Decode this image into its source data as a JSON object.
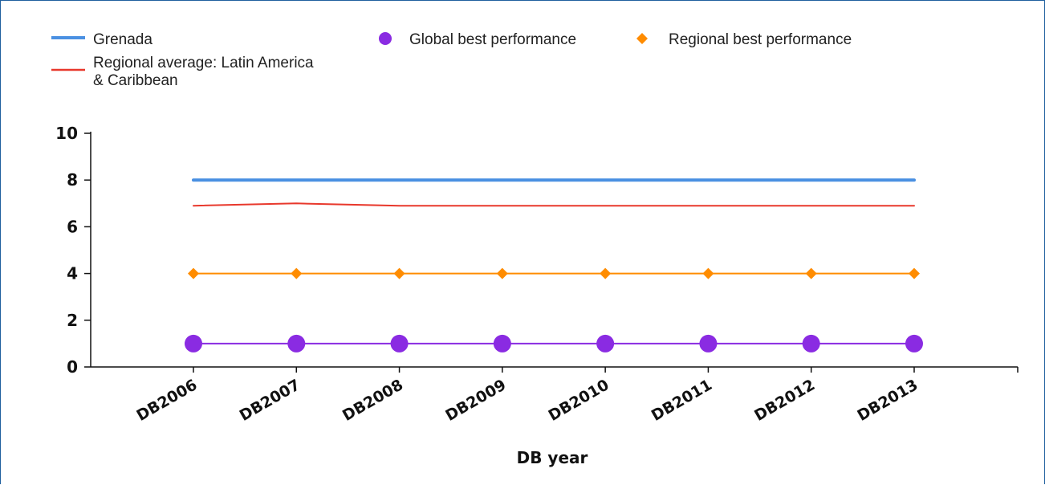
{
  "chart_data": {
    "type": "line",
    "categories": [
      "DB2006",
      "DB2007",
      "DB2008",
      "DB2009",
      "DB2010",
      "DB2011",
      "DB2012",
      "DB2013"
    ],
    "series": [
      {
        "name": "Grenada",
        "values": [
          8,
          8,
          8,
          8,
          8,
          8,
          8,
          8
        ],
        "color": "#4a90e2",
        "marker": "none",
        "style": "thick"
      },
      {
        "name": "Regional average: Latin America & Caribbean",
        "values": [
          6.9,
          7.0,
          6.9,
          6.9,
          6.9,
          6.9,
          6.9,
          6.9
        ],
        "color": "#e8382c",
        "marker": "none",
        "style": "thin"
      },
      {
        "name": "Global best performance",
        "values": [
          1,
          1,
          1,
          1,
          1,
          1,
          1,
          1
        ],
        "color": "#8a2be2",
        "marker": "circle",
        "style": "thin"
      },
      {
        "name": "Regional best performance",
        "values": [
          4,
          4,
          4,
          4,
          4,
          4,
          4,
          4
        ],
        "color": "#ff8c00",
        "marker": "diamond",
        "style": "thin"
      }
    ],
    "xlabel": "DB year",
    "ylabel": "",
    "ylim": [
      0,
      10
    ],
    "yticks": [
      0,
      2,
      4,
      6,
      8,
      10
    ],
    "grid": false,
    "legend_position": "top"
  }
}
